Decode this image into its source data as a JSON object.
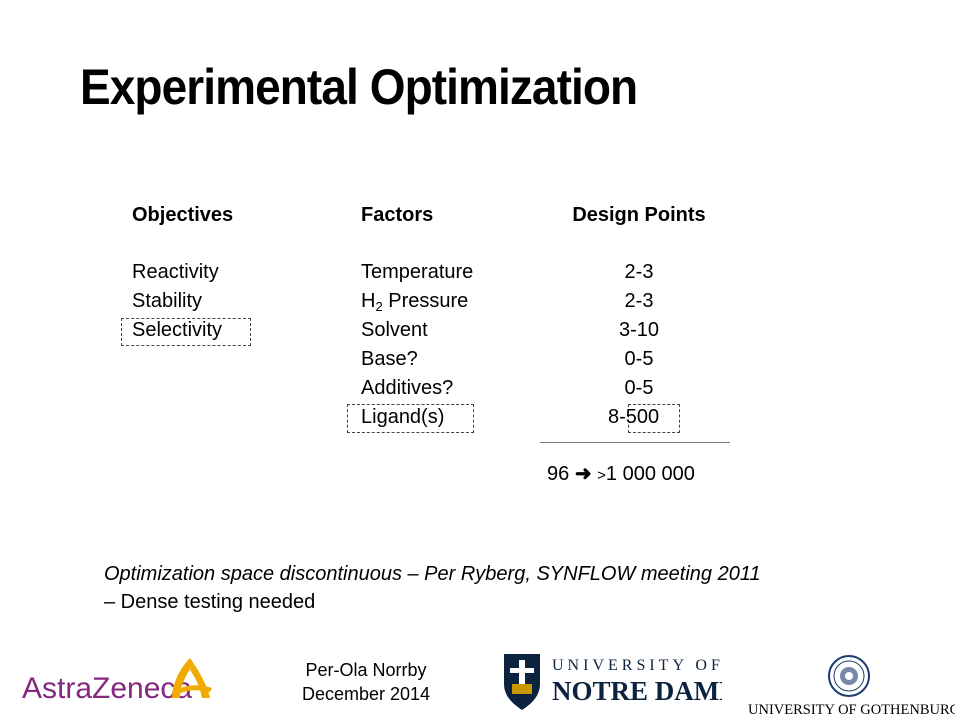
{
  "title": "Experimental Optimization",
  "table": {
    "headers": {
      "objectives": "Objectives",
      "factors": "Factors",
      "design_points": "Design Points"
    },
    "objectives": [
      "Reactivity",
      "Stability",
      "Selectivity"
    ],
    "factors": [
      "Temperature",
      "H",
      "Pressure",
      "Solvent",
      "Base?",
      "Additives?",
      "Ligand(s)"
    ],
    "factor_sub": "2",
    "design_points": [
      "2-3",
      "2-3",
      "3-10",
      "0-5",
      "0-5",
      "8-",
      "500"
    ],
    "total_left": "96",
    "total_gt": ">",
    "total_right": "1 000 000"
  },
  "quote_line1": "Optimization space discontinuous – Per Ryberg, SYNFLOW meeting 2011",
  "quote_line2": "– Dense testing needed",
  "footer": {
    "presenter": "Per-Ola Norrby",
    "date": "December 2014",
    "logo_astrazeneca": "AstraZeneca",
    "logo_notre_dame_top": "UNIVERSITY OF",
    "logo_notre_dame_bottom": "NOTRE DAME",
    "logo_gothenburg": "UNIVERSITY OF GOTHENBURG"
  },
  "colors": {
    "az_purple": "#84277f",
    "az_gold": "#f0ab00",
    "nd_navy": "#0c2340",
    "gu_blue": "#1a3b6e"
  },
  "icons": [
    "arrow-right-icon",
    "notre-dame-shield-icon",
    "gothenburg-seal-icon",
    "astrazeneca-swoosh-icon"
  ]
}
